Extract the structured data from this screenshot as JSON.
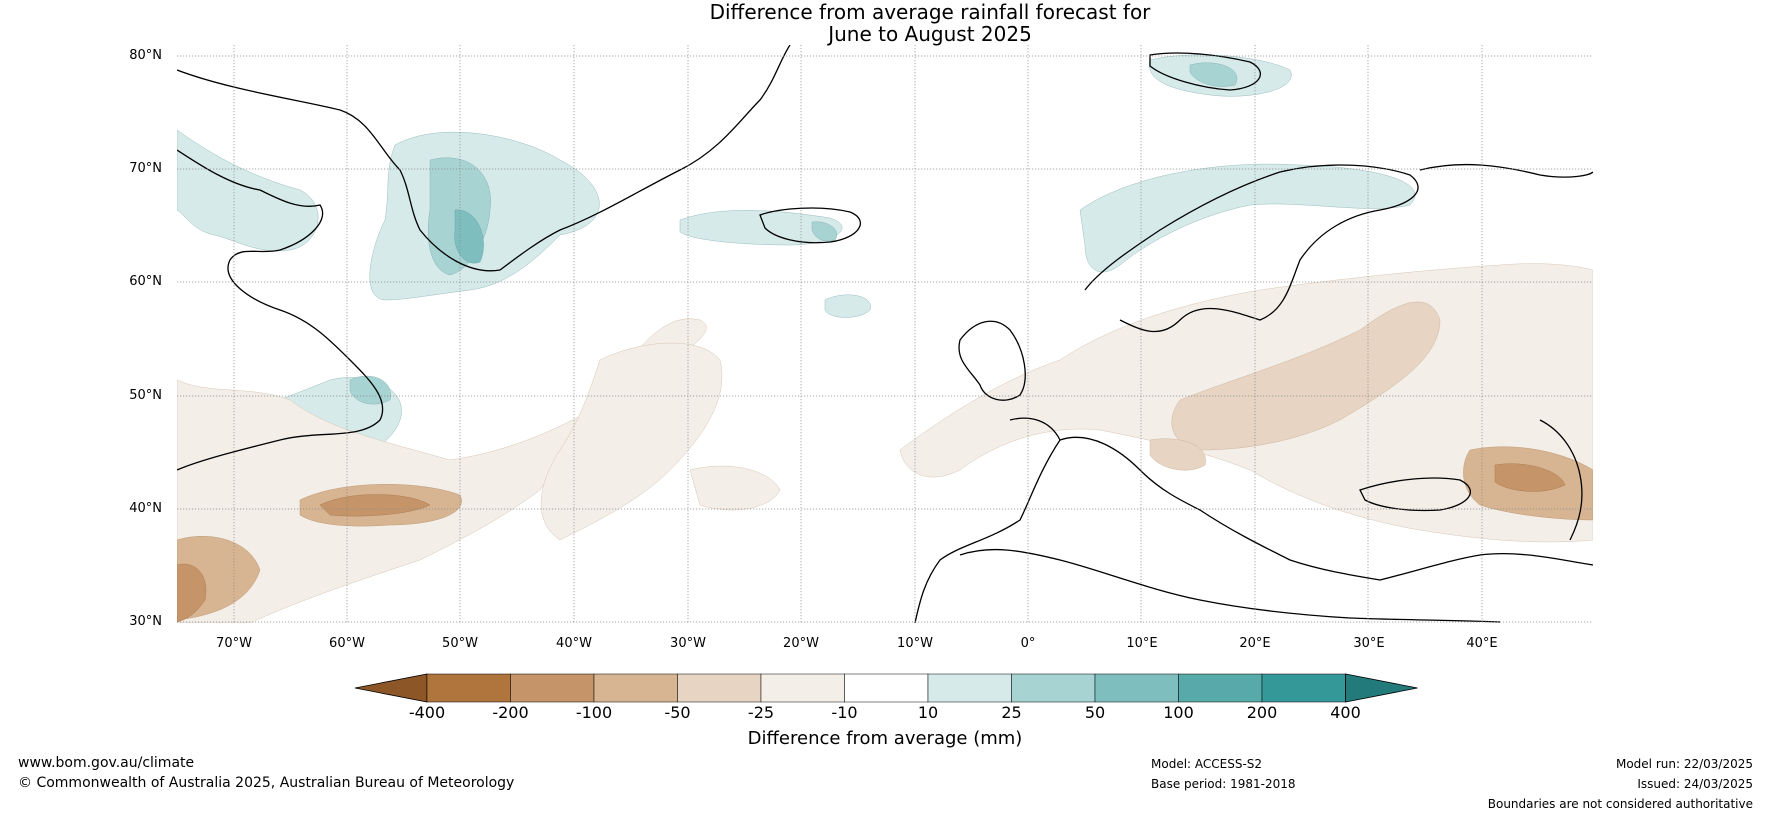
{
  "title": {
    "line1": "Difference from average rainfall forecast for",
    "line2": "June to August 2025"
  },
  "axes": {
    "lat_labels": [
      "80°N",
      "70°N",
      "60°N",
      "50°N",
      "40°N",
      "30°N"
    ],
    "lon_labels": [
      "70°W",
      "60°W",
      "50°W",
      "40°W",
      "30°W",
      "20°W",
      "10°W",
      "0°",
      "10°E",
      "20°E",
      "30°E",
      "40°E"
    ]
  },
  "colorbar": {
    "label": "Difference from average (mm)",
    "ticks": [
      "-400",
      "-200",
      "-100",
      "-50",
      "-25",
      "-10",
      "10",
      "25",
      "50",
      "100",
      "200",
      "400"
    ],
    "colors": [
      "#8c5626",
      "#b0753d",
      "#c59468",
      "#d7b592",
      "#e7d4c2",
      "#f3eee8",
      "#ffffff",
      "#d6eaea",
      "#a8d3d3",
      "#7ebebe",
      "#58aaaa",
      "#349898",
      "#227a7a"
    ]
  },
  "footer": {
    "website": "www.bom.gov.au/climate",
    "copyright": "© Commonwealth of Australia 2025, Australian Bureau of Meteorology",
    "model": "Model: ACCESS-S2",
    "base_period": "Base period: 1981-2018",
    "model_run": "Model run: 22/03/2025",
    "issued": "Issued: 24/03/2025",
    "disclaimer": "Boundaries are not considered authoritative"
  }
}
